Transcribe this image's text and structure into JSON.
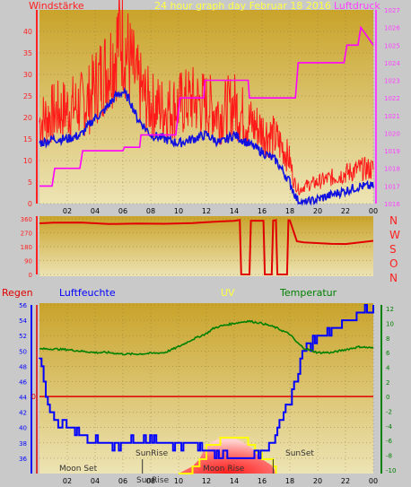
{
  "header": {
    "left_label": "Windstärke",
    "title": "24 hour graph day   Februar 18 2016",
    "right_label": "Luftdruck"
  },
  "compass_labels": [
    "N",
    "W",
    "S",
    "O",
    "N"
  ],
  "lower_header": {
    "regen": "Regen",
    "luftfeuchte": "Luftfeuchte",
    "uv": "UV",
    "temperatur": "Temperatur"
  },
  "annotations": {
    "moon_set": "Moon Set",
    "sunrise": "SunRise",
    "sunrise_bottom": "SunRise",
    "moon_rise": "Moon Rise",
    "sunset": "SunSet"
  },
  "colors": {
    "wind": "#ff1a1a",
    "wind_avg": "#1010e0",
    "pressure": "#ff00ff",
    "direction": "#e00000",
    "humidity": "#0000ff",
    "temperature": "#008000",
    "uv": "#ffff00",
    "rain_zero": "#e00000",
    "plot_top": "#c9a32a",
    "plot_bottom": "#ede4b4",
    "frame": "#c9c9c9"
  },
  "chart_data": [
    {
      "type": "line",
      "title": "24 hour graph day   Februar 18 2016",
      "x_ticks": [
        "02",
        "04",
        "06",
        "08",
        "10",
        "12",
        "14",
        "16",
        "18",
        "20",
        "22",
        "00"
      ],
      "xlim_hours": [
        0,
        24
      ],
      "left_axis": {
        "label": "Windstärke",
        "ylim": [
          0,
          45
        ],
        "ticks": [
          0,
          5,
          10,
          15,
          20,
          25,
          30,
          35,
          40
        ]
      },
      "right_axis": {
        "label": "Luftdruck",
        "ylim": [
          1016,
          1027
        ],
        "ticks": [
          1016,
          1017,
          1018,
          1019,
          1020,
          1021,
          1022,
          1023,
          1024,
          1025,
          1026,
          1027
        ]
      },
      "series": [
        {
          "name": "Windstärke",
          "axis": "left",
          "x": [
            0,
            1,
            2,
            3,
            3.5,
            4,
            4.5,
            5,
            5.5,
            5.8,
            6,
            6.5,
            7,
            7.5,
            8,
            9,
            10,
            11,
            12,
            13,
            14,
            14.5,
            15,
            16,
            17,
            17.5,
            18,
            18.3,
            18.7,
            19,
            20,
            21,
            22,
            23,
            24
          ],
          "values": [
            19,
            21,
            22,
            23,
            24,
            27,
            30,
            32,
            36,
            40,
            38,
            33,
            28,
            25,
            23,
            22,
            23,
            24,
            23,
            21,
            23,
            21,
            19,
            17,
            15,
            13,
            10,
            5,
            3,
            4,
            5,
            6,
            7,
            8,
            8
          ]
        },
        {
          "name": "Windstärke avg",
          "axis": "left",
          "x": [
            0,
            1,
            2,
            3,
            3.5,
            4,
            4.5,
            5,
            5.5,
            6,
            6.5,
            7,
            7.5,
            8,
            9,
            10,
            11,
            12,
            13,
            14,
            15,
            16,
            17,
            18,
            18.5,
            19,
            20,
            21,
            22,
            23,
            24
          ],
          "values": [
            14,
            15,
            15,
            16,
            18,
            20,
            21,
            23,
            25,
            26,
            24,
            20,
            18,
            16,
            15,
            14,
            15,
            16,
            14,
            16,
            14,
            12,
            10,
            5,
            1,
            0,
            1,
            2,
            3,
            4,
            4
          ]
        },
        {
          "name": "Luftdruck",
          "axis": "right",
          "x": [
            0,
            0.9,
            1.1,
            2.9,
            3.1,
            6,
            6.1,
            7.2,
            7.3,
            9.8,
            10.1,
            11.8,
            11.9,
            15,
            15.1,
            18.4,
            18.6,
            21.9,
            22.1,
            22.9,
            23.1,
            24
          ],
          "values": [
            1017,
            1017,
            1018,
            1018,
            1019,
            1019,
            1019.2,
            1019.2,
            1019.9,
            1019.9,
            1022,
            1022,
            1023,
            1023,
            1022,
            1022,
            1024,
            1024,
            1025,
            1025,
            1026,
            1025
          ]
        }
      ]
    },
    {
      "type": "line",
      "y_ticks": [
        0,
        90,
        180,
        270,
        360
      ],
      "ylim": [
        0,
        360
      ],
      "series": [
        {
          "name": "Windrichtung",
          "x": [
            0,
            1,
            3,
            5,
            7,
            9,
            11,
            12,
            13,
            14,
            14.4,
            14.5,
            15.1,
            15.2,
            16.1,
            16.2,
            16.7,
            16.8,
            17.0,
            17.1,
            17.8,
            17.9,
            18.0,
            18.5,
            19,
            21,
            22,
            24
          ],
          "values": [
            330,
            335,
            335,
            325,
            330,
            328,
            335,
            340,
            345,
            350,
            350,
            0,
            0,
            350,
            350,
            0,
            0,
            350,
            350,
            0,
            0,
            350,
            350,
            215,
            210,
            200,
            195,
            215
          ]
        }
      ]
    },
    {
      "type": "line",
      "x_ticks": [
        "02",
        "04",
        "06",
        "08",
        "10",
        "12",
        "14",
        "16",
        "18",
        "20",
        "22",
        "00"
      ],
      "xlim_hours": [
        0,
        24
      ],
      "left_axis": {
        "label": "Luftfeuchte",
        "ylim": [
          34,
          56
        ],
        "ticks": [
          36,
          38,
          40,
          42,
          44,
          46,
          48,
          50,
          52,
          54,
          56
        ]
      },
      "right_axis": {
        "label": "Temperatur",
        "ylim": [
          -10.5,
          12.5
        ],
        "ticks": [
          -10,
          -8,
          -6,
          -4,
          -2,
          0,
          2,
          4,
          6,
          8,
          10,
          12
        ]
      },
      "series": [
        {
          "name": "Luftfeuchte",
          "axis": "left",
          "x": [
            0,
            0.2,
            0.5,
            1,
            2,
            3,
            4,
            5,
            6,
            7,
            8,
            9,
            10,
            11,
            12,
            13,
            14,
            15,
            16,
            16.5,
            17,
            17.5,
            18,
            18.5,
            19,
            20,
            21,
            22,
            23,
            24
          ],
          "values": [
            49,
            48,
            43,
            41,
            40,
            39,
            38,
            38,
            38,
            38,
            38,
            38,
            38,
            38,
            37,
            37,
            36,
            36,
            37,
            38,
            39,
            41,
            44,
            47,
            50,
            52,
            53,
            54,
            55,
            56
          ]
        },
        {
          "name": "Temperatur",
          "axis": "right",
          "x": [
            0,
            1,
            2,
            3,
            4,
            5,
            6,
            7,
            8,
            9,
            10,
            11,
            12,
            12.5,
            13,
            14,
            15,
            16,
            17,
            18,
            18.5,
            19,
            20,
            21,
            22,
            23,
            24
          ],
          "values": [
            6.5,
            6.5,
            6.4,
            6.2,
            6.0,
            6.0,
            5.8,
            5.8,
            5.9,
            6.0,
            6.8,
            7.8,
            8.6,
            9.3,
            9.6,
            10.0,
            10.3,
            10.0,
            9.4,
            8.5,
            7.4,
            6.6,
            6.0,
            6.0,
            6.4,
            6.8,
            6.6
          ]
        },
        {
          "name": "UV",
          "axis": "uv",
          "x": [
            10,
            11,
            11.5,
            12,
            13,
            14,
            15,
            15.5,
            16,
            16.8,
            17
          ],
          "values": [
            0,
            0.5,
            1,
            2,
            2.5,
            2.5,
            2,
            1.5,
            1,
            0.5,
            0
          ]
        }
      ]
    }
  ]
}
